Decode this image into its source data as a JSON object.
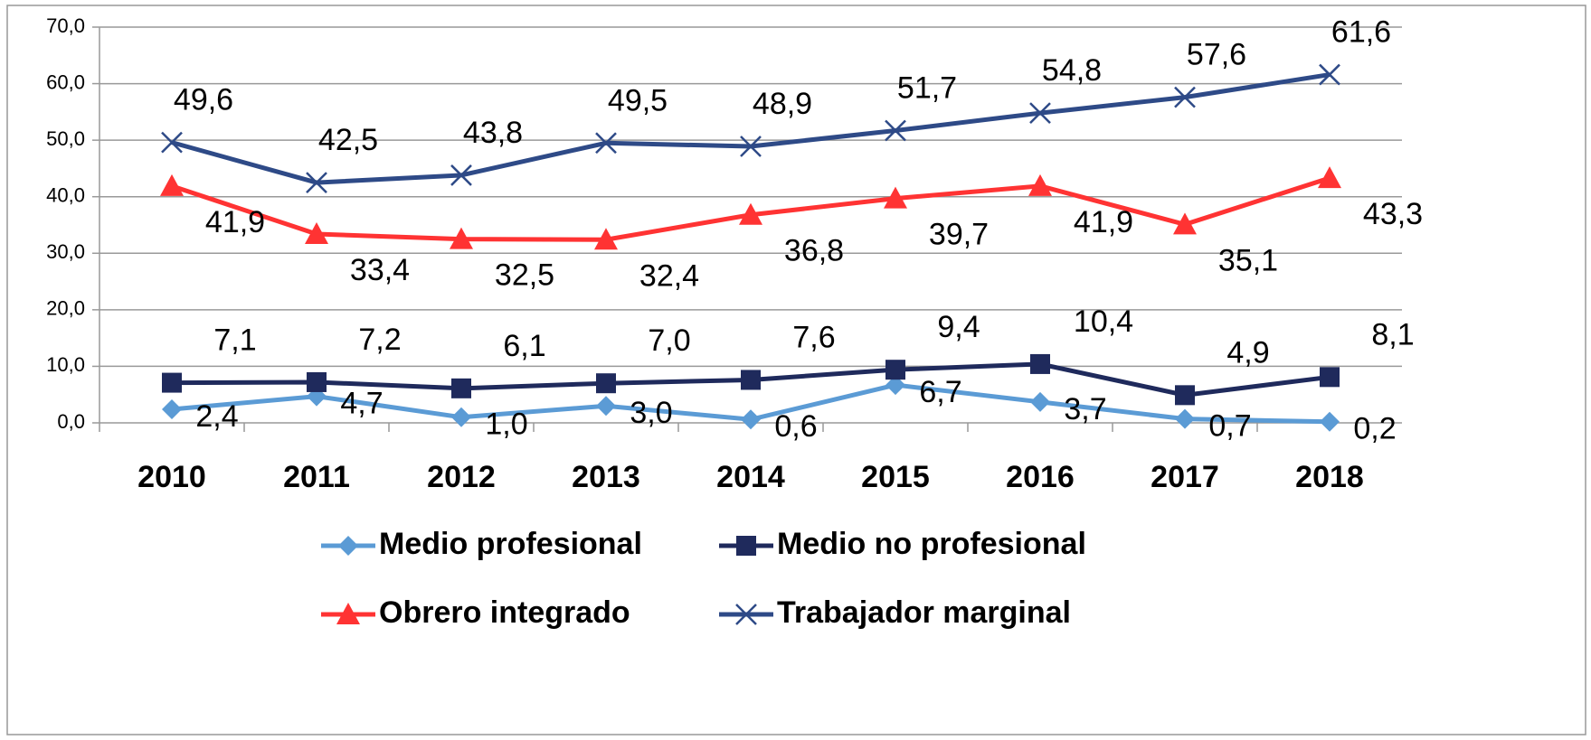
{
  "chart_data": {
    "type": "line",
    "categories": [
      "2010",
      "2011",
      "2012",
      "2013",
      "2014",
      "2015",
      "2016",
      "2017",
      "2018"
    ],
    "series": [
      {
        "name": "Medio profesional",
        "color": "#5b9bd5",
        "marker": "diamond",
        "values": [
          2.4,
          4.7,
          1.0,
          3.0,
          0.6,
          6.7,
          3.7,
          0.7,
          0.2
        ],
        "value_labels": [
          "2,4",
          "4,7",
          "1,0",
          "3,0",
          "0,6",
          "6,7",
          "3,7",
          "0,7",
          "0,2"
        ]
      },
      {
        "name": "Medio no profesional",
        "color": "#1f2a5c",
        "marker": "square",
        "values": [
          7.1,
          7.2,
          6.1,
          7.0,
          7.6,
          9.4,
          10.4,
          4.9,
          8.1
        ],
        "value_labels": [
          "7,1",
          "7,2",
          "6,1",
          "7,0",
          "7,6",
          "9,4",
          "10,4",
          "4,9",
          "8,1"
        ]
      },
      {
        "name": "Obrero integrado",
        "color": "#ff3333",
        "marker": "triangle",
        "values": [
          41.9,
          33.4,
          32.5,
          32.4,
          36.8,
          39.7,
          41.9,
          35.1,
          43.3
        ],
        "value_labels": [
          "41,9",
          "33,4",
          "32,5",
          "32,4",
          "36,8",
          "39,7",
          "41,9",
          "35,1",
          "43,3"
        ]
      },
      {
        "name": "Trabajador marginal",
        "color": "#2e4a87",
        "marker": "x",
        "values": [
          49.6,
          42.5,
          43.8,
          49.5,
          48.9,
          51.7,
          54.8,
          57.6,
          61.6
        ],
        "value_labels": [
          "49,6",
          "42,5",
          "43,8",
          "49,5",
          "48,9",
          "51,7",
          "54,8",
          "57,6",
          "61,6"
        ]
      }
    ],
    "ylim": [
      0,
      70
    ],
    "yticks": [
      {
        "value": 0,
        "label": "0,0"
      },
      {
        "value": 10,
        "label": "10,0"
      },
      {
        "value": 20,
        "label": "20,0"
      },
      {
        "value": 30,
        "label": "30,0"
      },
      {
        "value": 40,
        "label": "40,0"
      },
      {
        "value": 50,
        "label": "50,0"
      },
      {
        "value": 60,
        "label": "60,0"
      },
      {
        "value": 70,
        "label": "70,0"
      }
    ],
    "grid": true,
    "legend": "bottom"
  }
}
